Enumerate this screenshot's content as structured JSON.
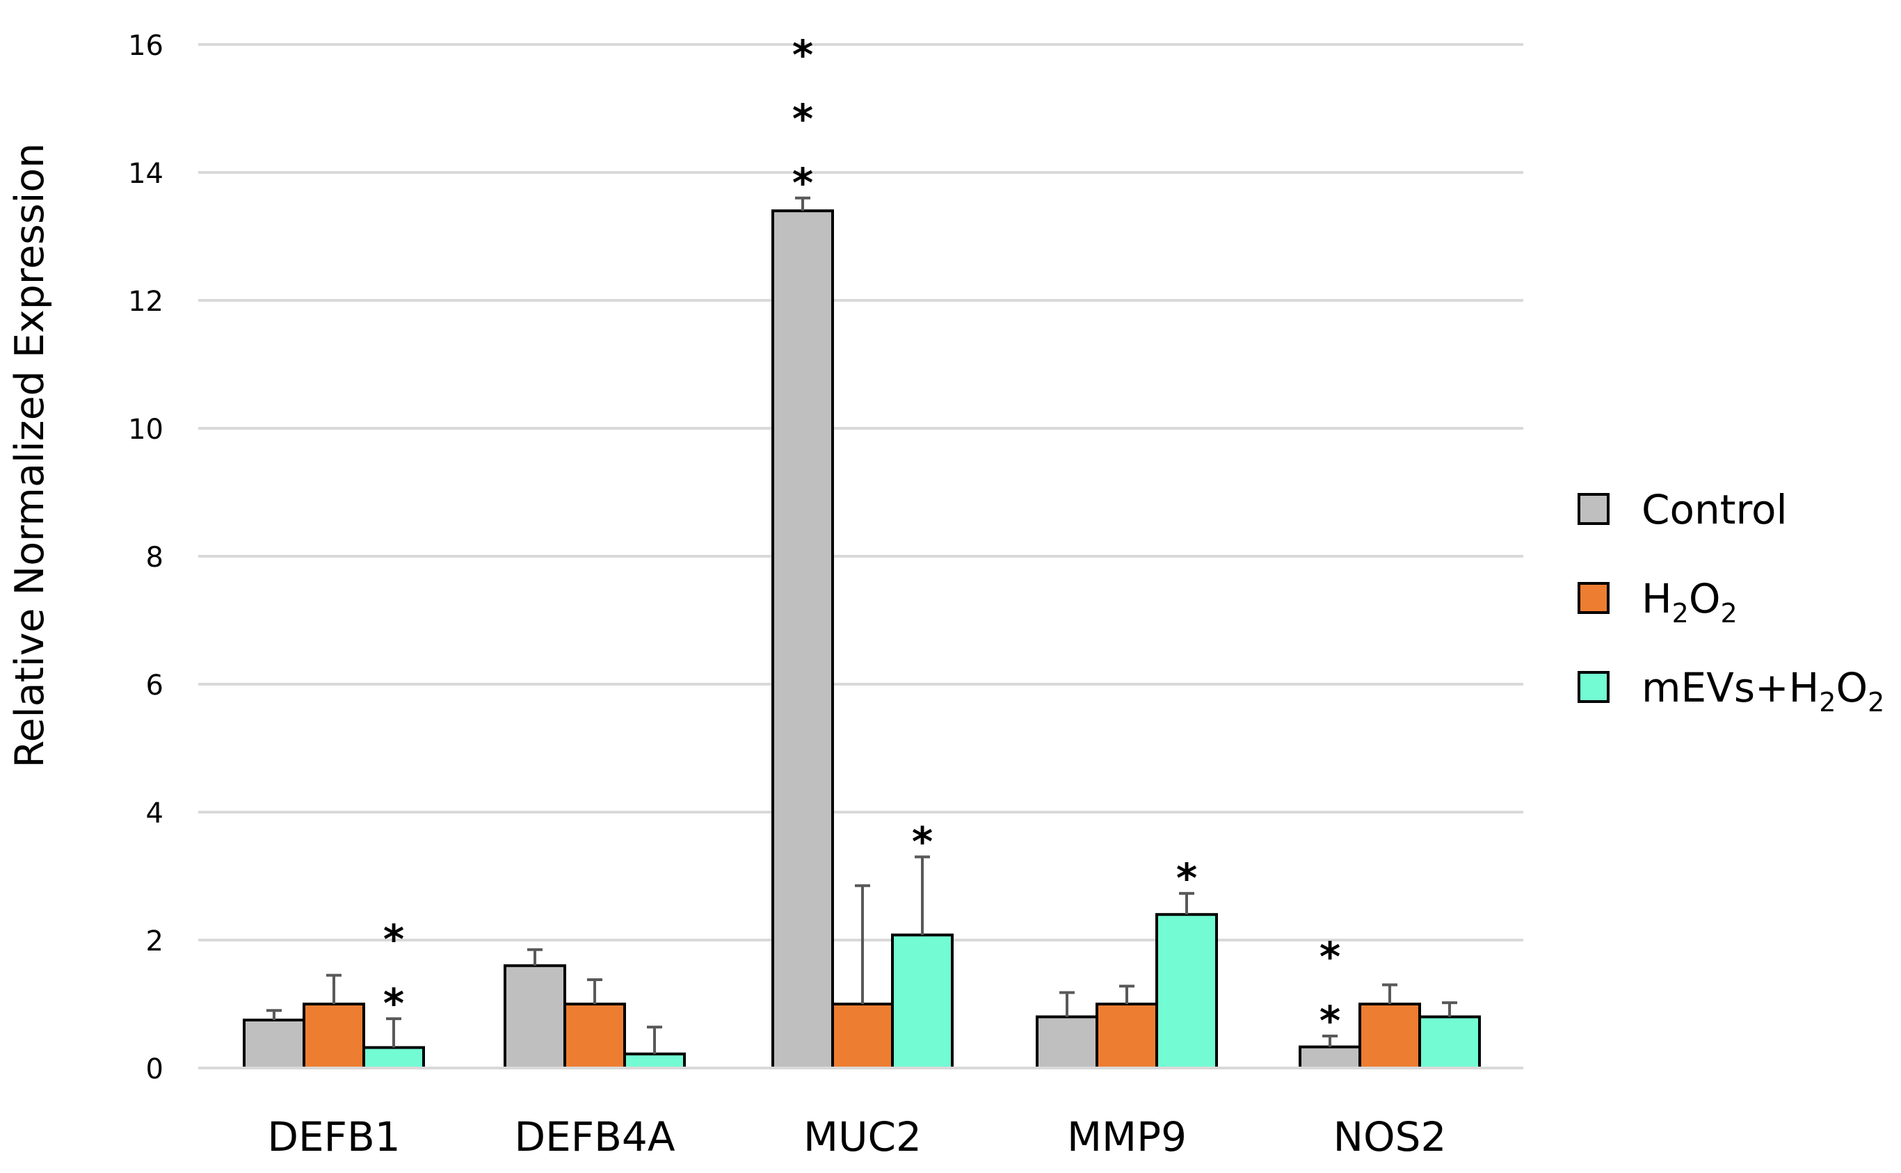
{
  "chart_data": {
    "type": "bar",
    "title": "",
    "xlabel": "",
    "ylabel": "Relative Normalized Expression",
    "ylim": [
      0,
      16
    ],
    "yticks": [
      0,
      2,
      4,
      6,
      8,
      10,
      12,
      14,
      16
    ],
    "grid": true,
    "legend_position": "right",
    "categories": [
      "DEFB1",
      "DEFB4A",
      "MUC2",
      "MMP9",
      "NOS2"
    ],
    "series": [
      {
        "name": "Control",
        "label_main": "Control",
        "label_sub": "",
        "label_tail": "",
        "color": "#BFBFBF",
        "values": [
          0.75,
          1.6,
          13.4,
          0.8,
          0.33
        ],
        "errors": [
          0.15,
          0.25,
          0.2,
          0.38,
          0.17
        ],
        "significance": [
          "",
          "",
          "***",
          "",
          "**"
        ]
      },
      {
        "name": "H2O2",
        "label_main": "H",
        "label_sub": "2",
        "label_tail": "O",
        "color": "#ED7D31",
        "values": [
          1.0,
          1.0,
          1.0,
          1.0,
          1.0
        ],
        "errors": [
          0.45,
          0.38,
          1.85,
          0.28,
          0.3
        ],
        "significance": [
          "",
          "",
          "",
          "",
          ""
        ]
      },
      {
        "name": "mEVs+H2O2",
        "label_main": "mEVs+H",
        "label_sub": "2",
        "label_tail": "O",
        "color": "#73FBD3",
        "values": [
          0.32,
          0.22,
          2.08,
          2.4,
          0.8
        ],
        "errors": [
          0.45,
          0.42,
          1.22,
          0.33,
          0.22
        ],
        "significance": [
          "**",
          "",
          "*",
          "*",
          ""
        ]
      }
    ]
  }
}
